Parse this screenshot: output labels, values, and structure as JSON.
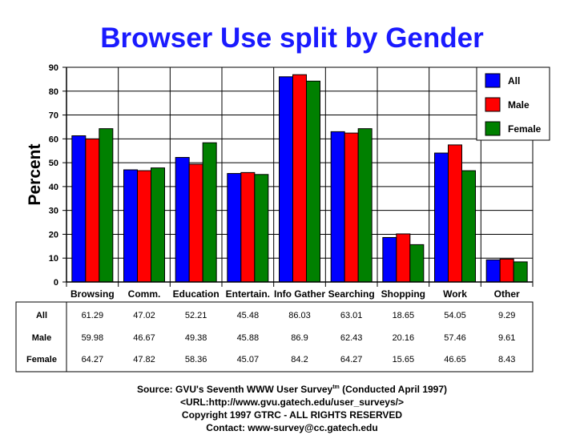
{
  "chart_data": {
    "type": "bar",
    "title": "Browser Use split by Gender",
    "ylabel": "Percent",
    "xlabel": "",
    "ylim": [
      0,
      90
    ],
    "yticks": [
      0,
      10,
      20,
      30,
      40,
      50,
      60,
      70,
      80,
      90
    ],
    "grid": true,
    "legend_position": "top-right",
    "categories": [
      "Browsing",
      "Comm.",
      "Education",
      "Entertain.",
      "Info Gather",
      "Searching",
      "Shopping",
      "Work",
      "Other"
    ],
    "series": [
      {
        "name": "All",
        "color": "#0000ff",
        "values": [
          61.29,
          47.02,
          52.21,
          45.48,
          86.03,
          63.01,
          18.65,
          54.05,
          9.29
        ],
        "labels": [
          "61.29",
          "47.02",
          "52.21",
          "45.48",
          "86.03",
          "63.01",
          "18.65",
          "54.05",
          "9.29"
        ]
      },
      {
        "name": "Male",
        "color": "#ff0000",
        "values": [
          59.98,
          46.67,
          49.38,
          45.88,
          86.9,
          62.43,
          20.16,
          57.46,
          9.61
        ],
        "labels": [
          "59.98",
          "46.67",
          "49.38",
          "45.88",
          "86.9",
          "62.43",
          "20.16",
          "57.46",
          "9.61"
        ]
      },
      {
        "name": "Female",
        "color": "#008000",
        "values": [
          64.27,
          47.82,
          58.36,
          45.07,
          84.2,
          64.27,
          15.65,
          46.65,
          8.43
        ],
        "labels": [
          "64.27",
          "47.82",
          "58.36",
          "45.07",
          "84.2",
          "64.27",
          "15.65",
          "46.65",
          "8.43"
        ]
      }
    ]
  },
  "footer": {
    "source_prefix": "Source: GVU's Seventh WWW User Survey",
    "source_tm": "tm",
    "source_suffix": " (Conducted April 1997)",
    "url": "<URL:http://www.gvu.gatech.edu/user_surveys/>",
    "copyright": "Copyright 1997 GTRC - ALL RIGHTS RESERVED",
    "contact": "Contact: www-survey@cc.gatech.edu"
  }
}
